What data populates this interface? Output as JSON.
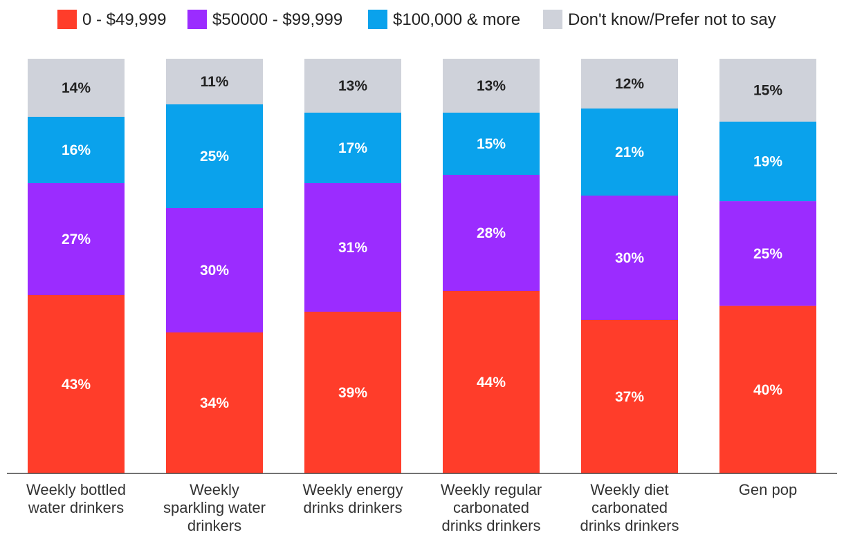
{
  "chart_data": {
    "type": "bar",
    "stacked": true,
    "categories": [
      [
        "Weekly bottled",
        "water drinkers"
      ],
      [
        "Weekly",
        "sparkling water",
        "drinkers"
      ],
      [
        "Weekly energy",
        "drinks drinkers"
      ],
      [
        "Weekly regular",
        "carbonated",
        "drinks drinkers"
      ],
      [
        "Weekly diet",
        "carbonated",
        "drinks drinkers"
      ],
      [
        "Gen pop"
      ]
    ],
    "series": [
      {
        "name": "0 - $49,999",
        "color": "#ff3d2a",
        "label_color": "#ffffff",
        "values": [
          43,
          34,
          39,
          44,
          37,
          40
        ]
      },
      {
        "name": "$50000 - $99,999",
        "color": "#9b2cff",
        "label_color": "#ffffff",
        "values": [
          27,
          30,
          31,
          28,
          30,
          25
        ]
      },
      {
        "name": "$100,000 & more",
        "color": "#0aa2ec",
        "label_color": "#ffffff",
        "values": [
          16,
          25,
          17,
          15,
          21,
          19
        ]
      },
      {
        "name": "Don't know/Prefer not to say",
        "color": "#cfd2da",
        "label_color": "#222222",
        "values": [
          14,
          11,
          13,
          13,
          12,
          15
        ]
      }
    ],
    "value_suffix": "%",
    "ylim": [
      0,
      100
    ],
    "legend_position": "top",
    "grid": false,
    "xlabel": "",
    "ylabel": ""
  }
}
